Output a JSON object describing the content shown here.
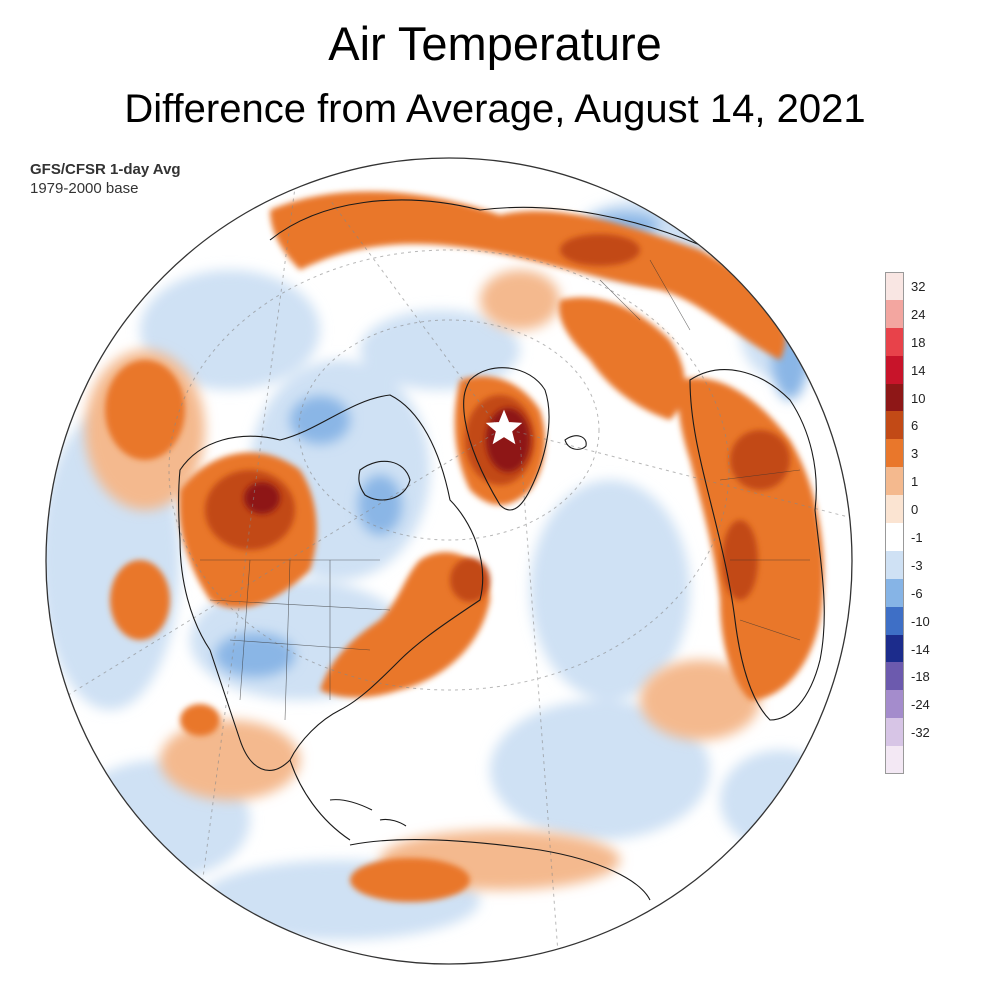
{
  "title": "Air Temperature",
  "subtitle": "Difference from Average, August 14, 2021",
  "source": {
    "line1": "GFS/CFSR 1-day Avg",
    "line2": "1979-2000 base"
  },
  "map": {
    "projection": "orthographic",
    "view": "Northern Hemisphere centered on North Atlantic",
    "marker": {
      "icon": "star-icon",
      "location": "Summit, Greenland ice sheet",
      "color": "#ffffff"
    },
    "colors": {
      "ocean_neutral": "#ffffff",
      "warm_strong": "#8e1717",
      "warm": "#d9621c",
      "warm_light": "#f4b98e",
      "cool_light": "#c7dcf2",
      "cool": "#7aa8e0"
    }
  },
  "legend": {
    "items": [
      {
        "label": "32",
        "color": "#f9e6e3"
      },
      {
        "label": "24",
        "color": "#f3a6a0"
      },
      {
        "label": "18",
        "color": "#e8424a"
      },
      {
        "label": "14",
        "color": "#c8142a"
      },
      {
        "label": "10",
        "color": "#8e1717"
      },
      {
        "label": "6",
        "color": "#c24a16"
      },
      {
        "label": "3",
        "color": "#e9772b"
      },
      {
        "label": "1",
        "color": "#f4b98e"
      },
      {
        "label": "0",
        "color": "#fbe4d2"
      },
      {
        "label": "-1",
        "color": "#ffffff"
      },
      {
        "label": "-3",
        "color": "#cfe1f4"
      },
      {
        "label": "-6",
        "color": "#86b4e6"
      },
      {
        "label": "-10",
        "color": "#3e6fc6"
      },
      {
        "label": "-14",
        "color": "#1c2c8c"
      },
      {
        "label": "-18",
        "color": "#6c5aae"
      },
      {
        "label": "-24",
        "color": "#a48ccc"
      },
      {
        "label": "-32",
        "color": "#d7c5e6"
      },
      {
        "label": "",
        "color": "#f3e8f4"
      }
    ]
  }
}
